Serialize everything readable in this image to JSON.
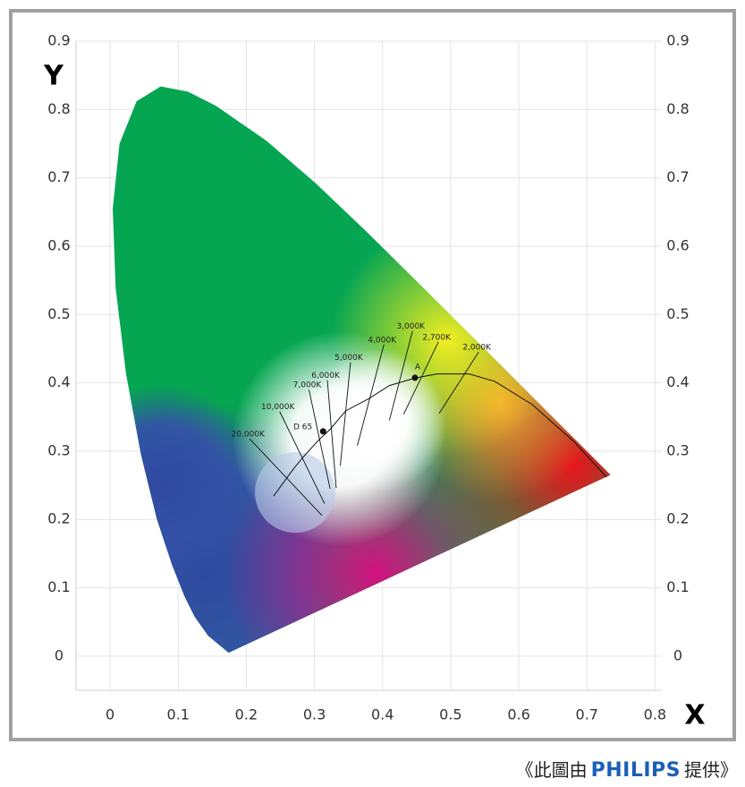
{
  "chart_data": {
    "type": "chromaticity",
    "xlabel": "X",
    "ylabel": "Y",
    "xlim": [
      -0.05,
      0.81
    ],
    "ylim": [
      -0.05,
      0.9
    ],
    "xticks": [
      0,
      0.1,
      0.2,
      0.3,
      0.4,
      0.5,
      0.6,
      0.7,
      0.8
    ],
    "yticks": [
      0,
      0.1,
      0.2,
      0.3,
      0.4,
      0.5,
      0.6,
      0.7,
      0.8,
      0.9
    ],
    "grid": true,
    "spectral_locus": {
      "x": [
        0.1741,
        0.144,
        0.1241,
        0.1096,
        0.0913,
        0.0687,
        0.0454,
        0.0235,
        0.0082,
        0.0039,
        0.0139,
        0.0389,
        0.0743,
        0.1142,
        0.1547,
        0.2296,
        0.3016,
        0.3731,
        0.4441,
        0.5125,
        0.5752,
        0.627,
        0.6915,
        0.719,
        0.7347
      ],
      "y": [
        0.005,
        0.0297,
        0.0578,
        0.0868,
        0.1327,
        0.2007,
        0.295,
        0.4127,
        0.5384,
        0.6548,
        0.7502,
        0.812,
        0.8338,
        0.8262,
        0.8059,
        0.7543,
        0.6923,
        0.6245,
        0.5547,
        0.4866,
        0.4242,
        0.3725,
        0.3083,
        0.2809,
        0.2653
      ]
    },
    "planckian_locus": {
      "x": [
        0.24,
        0.253,
        0.27,
        0.285,
        0.306,
        0.323,
        0.346,
        0.38,
        0.41,
        0.448,
        0.48,
        0.527,
        0.565,
        0.62,
        0.68,
        0.729
      ],
      "y": [
        0.234,
        0.252,
        0.275,
        0.293,
        0.316,
        0.332,
        0.359,
        0.377,
        0.396,
        0.407,
        0.413,
        0.413,
        0.402,
        0.368,
        0.315,
        0.262
      ]
    },
    "isotherms": [
      {
        "label": "20,000K",
        "x": [
          0.205,
          0.311
        ],
        "y": [
          0.318,
          0.206
        ]
      },
      {
        "label": "10,000K",
        "x": [
          0.249,
          0.315
        ],
        "y": [
          0.358,
          0.223
        ]
      },
      {
        "label": "7,000K",
        "x": [
          0.292,
          0.323
        ],
        "y": [
          0.39,
          0.245
        ]
      },
      {
        "label": "6,000K",
        "x": [
          0.319,
          0.332
        ],
        "y": [
          0.404,
          0.246
        ]
      },
      {
        "label": "5,000K",
        "x": [
          0.353,
          0.338
        ],
        "y": [
          0.43,
          0.279
        ]
      },
      {
        "label": "4,000K",
        "x": [
          0.402,
          0.363
        ],
        "y": [
          0.456,
          0.308
        ]
      },
      {
        "label": "3,000K",
        "x": [
          0.444,
          0.41
        ],
        "y": [
          0.476,
          0.345
        ]
      },
      {
        "label": "2,700K",
        "x": [
          0.482,
          0.431
        ],
        "y": [
          0.46,
          0.354
        ]
      },
      {
        "label": "2,000K",
        "x": [
          0.541,
          0.483
        ],
        "y": [
          0.445,
          0.355
        ]
      }
    ],
    "points": [
      {
        "label": "D 65",
        "x": 0.3127,
        "y": 0.329
      },
      {
        "label": "A",
        "x": 0.4476,
        "y": 0.4074
      }
    ]
  },
  "caption": {
    "before": "《此圖由",
    "brand": "PHILIPS",
    "after": "提供》"
  }
}
